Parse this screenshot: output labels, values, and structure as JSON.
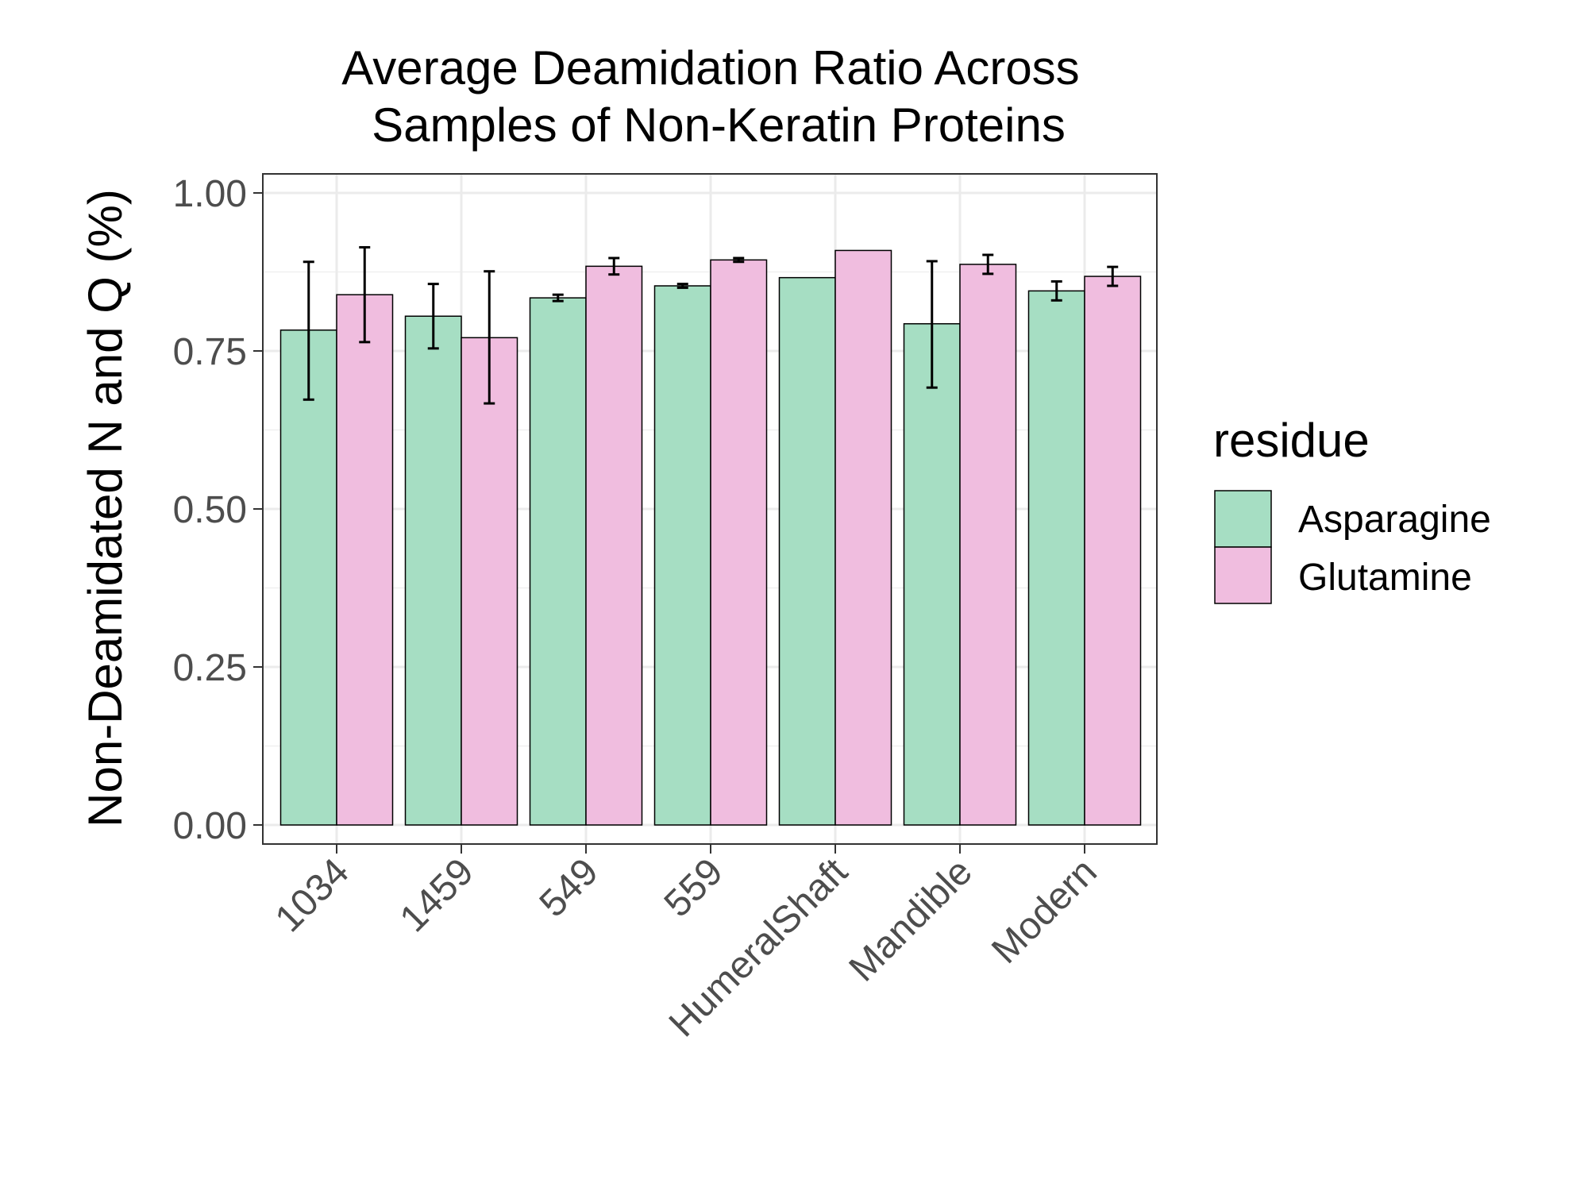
{
  "chart_data": {
    "type": "bar",
    "title_lines": [
      "Average Deamidation Ratio Across",
      "Samples of Non-Keratin Proteins"
    ],
    "xlabel": "",
    "ylabel": "Non-Deamidated N and Q (%)",
    "categories": [
      "1034",
      "1459",
      "549",
      "559",
      "HumeralShaft",
      "Mandible",
      "Modern"
    ],
    "ylim": [
      0,
      1
    ],
    "yticks": [
      0,
      0.25,
      0.5,
      0.75,
      1
    ],
    "ytick_labels": [
      "0.00",
      "0.25",
      "0.50",
      "0.75",
      "1.00"
    ],
    "grid": true,
    "legend": {
      "title": "residue",
      "position": "right"
    },
    "series": [
      {
        "name": "Asparagine",
        "color": "#a6dec3",
        "values": [
          0.783,
          0.805,
          0.834,
          0.853,
          0.866,
          0.793,
          0.845
        ],
        "error_low": [
          0.673,
          0.754,
          0.829,
          0.85,
          null,
          0.692,
          0.83
        ],
        "error_high": [
          0.891,
          0.856,
          0.839,
          0.856,
          null,
          0.892,
          0.86
        ]
      },
      {
        "name": "Glutamine",
        "color": "#f0bddf",
        "values": [
          0.839,
          0.771,
          0.884,
          0.894,
          0.909,
          0.887,
          0.868
        ],
        "error_low": [
          0.764,
          0.667,
          0.871,
          0.891,
          null,
          0.872,
          0.853
        ],
        "error_high": [
          0.914,
          0.876,
          0.897,
          0.897,
          null,
          0.902,
          0.883
        ]
      }
    ]
  }
}
